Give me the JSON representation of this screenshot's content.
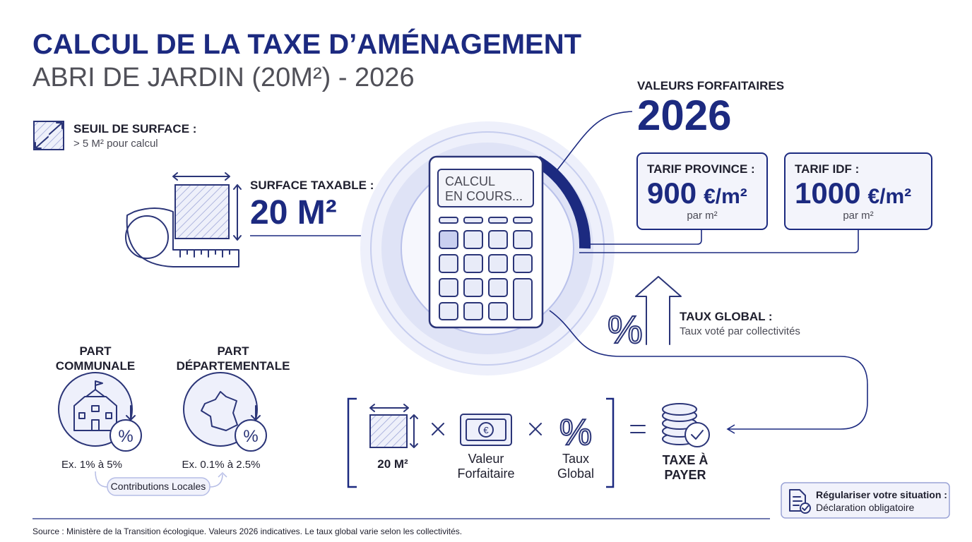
{
  "header": {
    "title": "CALCUL DE LA TAXE D’AMÉNAGEMENT",
    "subtitle": "ABRI DE JARDIN (20M²) - 2026"
  },
  "threshold": {
    "label": "SEUIL DE SURFACE :",
    "text": "> 5 M² pour calcul"
  },
  "surface": {
    "label": "SURFACE TAXABLE :",
    "value": "20 M²"
  },
  "calculator": {
    "screen": [
      "CALCUL",
      "EN COURS..."
    ]
  },
  "flat_values": {
    "label": "VALEURS FORFAITAIRES",
    "year": "2026",
    "province": {
      "label": "TARIF PROVINCE :",
      "amount": "900",
      "unit": "€/m²",
      "note": "par m²"
    },
    "idf": {
      "label": "TARIF IDF :",
      "amount": "1000",
      "unit": "€/m²",
      "note": "par m²"
    }
  },
  "rate": {
    "label": "TAUX GLOBAL :",
    "text": "Taux voté par collectivités"
  },
  "parts": [
    {
      "title": [
        "PART",
        "COMMUNALE"
      ],
      "range": "Ex. 1% à 5%"
    },
    {
      "title": [
        "PART",
        "DÉPARTEMENTALE"
      ],
      "range": "Ex. 0.1% à 2.5%"
    }
  ],
  "contributions": "Contributions Locales",
  "formula": {
    "surface": "20 M²",
    "value": [
      "Valeur",
      "Forfaitaire"
    ],
    "rate": [
      "Taux",
      "Global"
    ],
    "result": [
      "TAXE À",
      "PAYER"
    ]
  },
  "notice": {
    "title": "Régulariser votre situation :",
    "text": "Déclaration obligatoire"
  },
  "source": "Source : Ministère de la Transition écologique. Valeurs 2026 indicatives. Le taux global varie selon les collectivités."
}
